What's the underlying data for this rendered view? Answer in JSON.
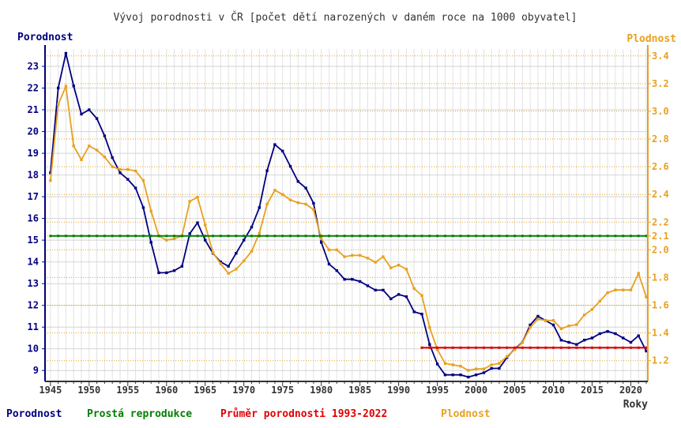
{
  "chart_data": {
    "type": "line",
    "title": "Vývoj porodnosti v ČR [počet dětí narozených v daném roce na 1000 obyvatel]",
    "ylabel": "Porodnost",
    "y2label": "Plodnost",
    "xlabel": "Roky",
    "ylim": [
      8.5,
      23.8
    ],
    "y2lim": [
      1.05,
      3.45
    ],
    "xlim": [
      1944.3,
      2022.2
    ],
    "grid": true,
    "y_ticks": [
      9,
      10,
      11,
      12,
      13,
      14,
      15,
      16,
      17,
      18,
      19,
      20,
      21,
      22,
      23
    ],
    "y2_ticks": [
      "1.2",
      "1.4",
      "1.6",
      "1.8",
      "2.0",
      "2.1",
      "2.2",
      "2.4",
      "2.6",
      "2.8",
      "3.0",
      "3.2",
      "3.4"
    ],
    "x_ticks": [
      1945,
      1950,
      1955,
      1960,
      1965,
      1970,
      1975,
      1980,
      1985,
      1990,
      1995,
      2000,
      2005,
      2010,
      2015,
      2020
    ],
    "x": [
      1945,
      1946,
      1947,
      1948,
      1949,
      1950,
      1951,
      1952,
      1953,
      1954,
      1955,
      1956,
      1957,
      1958,
      1959,
      1960,
      1961,
      1962,
      1963,
      1964,
      1965,
      1966,
      1967,
      1968,
      1969,
      1970,
      1971,
      1972,
      1973,
      1974,
      1975,
      1976,
      1977,
      1978,
      1979,
      1980,
      1981,
      1982,
      1983,
      1984,
      1985,
      1986,
      1987,
      1988,
      1989,
      1990,
      1991,
      1992,
      1993,
      1994,
      1995,
      1996,
      1997,
      1998,
      1999,
      2000,
      2001,
      2002,
      2003,
      2004,
      2005,
      2006,
      2007,
      2008,
      2009,
      2010,
      2011,
      2012,
      2013,
      2014,
      2015,
      2016,
      2017,
      2018,
      2019,
      2020,
      2021,
      2022
    ],
    "series": [
      {
        "name": "Porodnost",
        "axis": "left",
        "color": "#000080",
        "values": [
          18.1,
          22.0,
          23.6,
          22.1,
          20.8,
          21.0,
          20.6,
          19.8,
          18.8,
          18.1,
          17.8,
          17.4,
          16.5,
          14.9,
          13.5,
          13.5,
          13.6,
          13.8,
          15.3,
          15.8,
          15.0,
          14.4,
          14.0,
          13.8,
          14.4,
          15.0,
          15.6,
          16.5,
          18.2,
          19.4,
          19.1,
          18.4,
          17.7,
          17.4,
          16.7,
          14.9,
          13.9,
          13.6,
          13.2,
          13.2,
          13.1,
          12.9,
          12.7,
          12.7,
          12.3,
          12.5,
          12.4,
          11.7,
          11.6,
          10.2,
          9.3,
          8.8,
          8.8,
          8.8,
          8.7,
          8.8,
          8.9,
          9.1,
          9.1,
          9.6,
          10.0,
          10.3,
          11.1,
          11.5,
          11.3,
          11.1,
          10.4,
          10.3,
          10.2,
          10.4,
          10.5,
          10.7,
          10.8,
          10.7,
          10.5,
          10.3,
          10.6,
          9.9
        ]
      },
      {
        "name": "Plodnost",
        "axis": "right",
        "color": "#e8a020",
        "values": [
          2.5,
          3.05,
          3.18,
          2.75,
          2.65,
          2.75,
          2.72,
          2.67,
          2.6,
          2.58,
          2.58,
          2.57,
          2.5,
          2.28,
          2.1,
          2.07,
          2.08,
          2.1,
          2.35,
          2.38,
          2.18,
          1.98,
          1.9,
          1.83,
          1.86,
          1.92,
          1.99,
          2.12,
          2.33,
          2.43,
          2.4,
          2.36,
          2.34,
          2.33,
          2.29,
          2.08,
          2.0,
          2.0,
          1.95,
          1.96,
          1.96,
          1.94,
          1.91,
          1.95,
          1.87,
          1.89,
          1.86,
          1.72,
          1.67,
          1.44,
          1.28,
          1.18,
          1.17,
          1.16,
          1.13,
          1.14,
          1.14,
          1.17,
          1.18,
          1.23,
          1.28,
          1.33,
          1.44,
          1.5,
          1.49,
          1.49,
          1.43,
          1.45,
          1.46,
          1.53,
          1.57,
          1.63,
          1.69,
          1.71,
          1.71,
          1.71,
          1.83,
          1.66
        ]
      },
      {
        "name": "Prostá reprodukce",
        "axis": "right",
        "color": "#008000",
        "values": [
          2.1,
          2.1
        ],
        "x": [
          1945,
          2022
        ]
      },
      {
        "name": "Průměr porodnosti 1993-2022",
        "axis": "left",
        "color": "#e00000",
        "values": [
          10.05,
          10.05
        ],
        "x": [
          1993,
          2022
        ]
      }
    ],
    "legend": {
      "position": "bottom",
      "items": [
        {
          "label": "Porodnost",
          "color": "#000080"
        },
        {
          "label": "Prostá reprodukce",
          "color": "#008000"
        },
        {
          "label": "Průměr porodnosti 1993-2022",
          "color": "#e00000"
        },
        {
          "label": "Plodnost",
          "color": "#e8a020"
        }
      ]
    }
  }
}
